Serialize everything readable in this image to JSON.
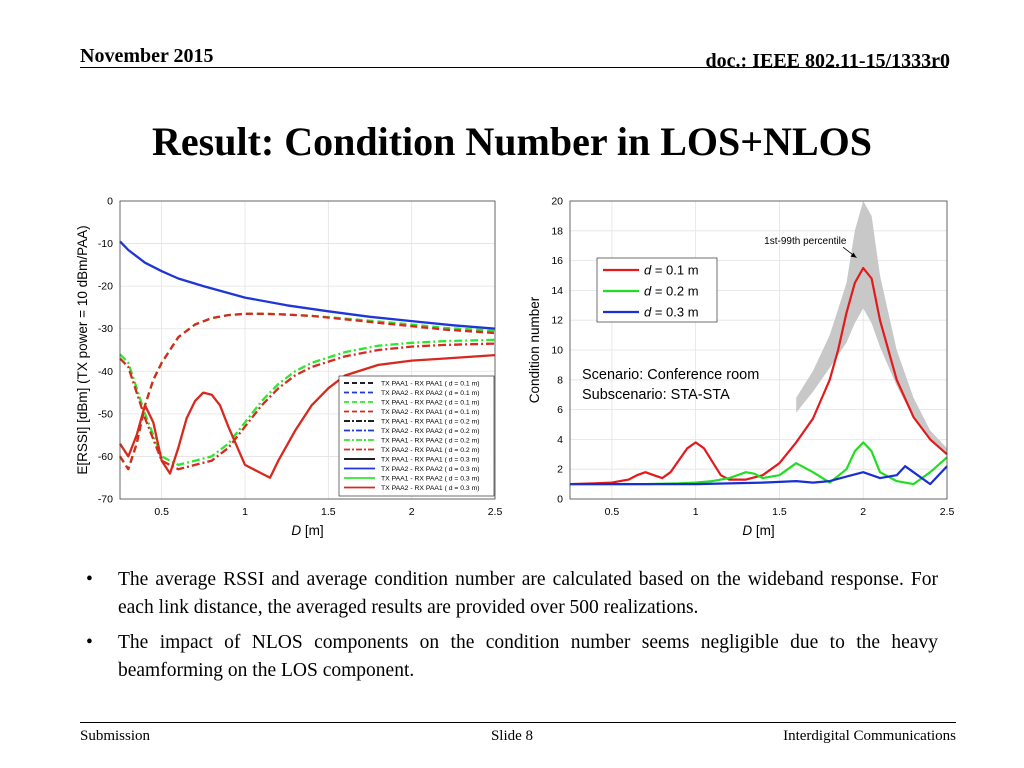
{
  "header": {
    "date": "November 2015",
    "doc": "doc.: IEEE 802.11-15/1333r0"
  },
  "slide_title": "Result: Condition Number in LOS+NLOS",
  "chart_data": [
    {
      "type": "line",
      "title": "",
      "xlabel_italic": "D",
      "xlabel_unit": " [m]",
      "ylabel": "E[RSSI] [dBm] (TX power = 10 dBm/PAA)",
      "xlim": [
        0.25,
        2.5
      ],
      "ylim": [
        -70,
        0
      ],
      "xticks": [
        0.5,
        1,
        1.5,
        2,
        2.5
      ],
      "xtick_labels": [
        "0.5",
        "1",
        "1.5",
        "2",
        "2.5"
      ],
      "yticks": [
        0,
        -10,
        -20,
        -30,
        -40,
        -50,
        -60,
        -70
      ],
      "ytick_labels": [
        "0",
        "-10",
        "-20",
        "-30",
        "-40",
        "-50",
        "-60",
        "-70"
      ],
      "legend_position": "bottom-right",
      "series": [
        {
          "name": "TX PAA2 - RX PAA2 (d = 0.3 m)",
          "color": "#1f36d6",
          "dash": "solid",
          "x": [
            0.25,
            0.3,
            0.4,
            0.5,
            0.6,
            0.75,
            1.0,
            1.25,
            1.5,
            1.75,
            2.0,
            2.25,
            2.5
          ],
          "y": [
            -9.5,
            -11.5,
            -14.5,
            -16.5,
            -18.2,
            -20.0,
            -22.7,
            -24.5,
            -25.9,
            -27.2,
            -28.2,
            -29.2,
            -30.0
          ]
        },
        {
          "name": "TX PAA1 - RX PAA2 (d = 0.2 m)",
          "color": "#2ee62e",
          "dash": "dashed",
          "x": [
            0.25,
            0.3,
            0.35,
            0.4,
            0.45,
            0.5,
            0.6,
            0.7,
            0.8,
            0.9,
            1.0,
            1.1,
            1.2,
            1.4,
            1.6,
            1.8,
            2.0,
            2.2,
            2.5
          ],
          "y": [
            -60,
            -63,
            -57,
            -48,
            -42,
            -38,
            -32,
            -29,
            -27.5,
            -26.8,
            -26.5,
            -26.5,
            -26.6,
            -27.0,
            -27.6,
            -28.3,
            -29.0,
            -29.8,
            -30.5
          ]
        },
        {
          "name": "TX PAA1 - RX PAA1 (d = 0.2 m)",
          "color": "#d62a1f",
          "dash": "dashed",
          "x": [
            0.25,
            0.3,
            0.35,
            0.4,
            0.45,
            0.5,
            0.6,
            0.7,
            0.8,
            0.9,
            1.0,
            1.1,
            1.2,
            1.4,
            1.6,
            1.8,
            2.0,
            2.2,
            2.5
          ],
          "y": [
            -60,
            -63,
            -57,
            -48,
            -42,
            -38,
            -32,
            -29,
            -27.5,
            -26.8,
            -26.5,
            -26.5,
            -26.6,
            -27.0,
            -27.8,
            -28.6,
            -29.4,
            -30.2,
            -31.0
          ]
        },
        {
          "name": "TX PAA1 - RX PAA2 (d = 0.1 m)",
          "color": "#2ee62e",
          "dash": "dashdot",
          "x": [
            0.25,
            0.3,
            0.35,
            0.4,
            0.5,
            0.6,
            0.7,
            0.8,
            0.9,
            1.0,
            1.1,
            1.2,
            1.3,
            1.4,
            1.6,
            1.8,
            2.0,
            2.2,
            2.5
          ],
          "y": [
            -36,
            -38,
            -44,
            -50,
            -60,
            -62,
            -61,
            -60,
            -57,
            -52,
            -47,
            -43,
            -40,
            -38,
            -35.5,
            -34,
            -33.3,
            -32.9,
            -32.6
          ]
        },
        {
          "name": "TX PAA1 - RX PAA1 (d = 0.1 m)",
          "color": "#d62a1f",
          "dash": "dashdot",
          "x": [
            0.25,
            0.3,
            0.35,
            0.4,
            0.5,
            0.6,
            0.7,
            0.8,
            0.9,
            1.0,
            1.1,
            1.2,
            1.3,
            1.4,
            1.6,
            1.8,
            2.0,
            2.2,
            2.5
          ],
          "y": [
            -37,
            -39,
            -45,
            -51,
            -61,
            -63,
            -62,
            -61,
            -58,
            -53,
            -48,
            -44,
            -41,
            -39,
            -36.5,
            -35,
            -34.2,
            -33.8,
            -33.5
          ]
        },
        {
          "name": "TX PAA1 - RX PAA1 (d = 0.3 m)",
          "color": "#d62a1f",
          "dash": "solid",
          "x": [
            0.25,
            0.3,
            0.35,
            0.4,
            0.45,
            0.5,
            0.55,
            0.6,
            0.65,
            0.7,
            0.75,
            0.8,
            0.85,
            0.9,
            1.0,
            1.1,
            1.15,
            1.2,
            1.3,
            1.4,
            1.5,
            1.6,
            1.8,
            2.0,
            2.2,
            2.5
          ],
          "y": [
            -57,
            -60,
            -55,
            -48,
            -52,
            -61,
            -64,
            -58,
            -51,
            -47,
            -45,
            -45.5,
            -48,
            -53,
            -62,
            -64,
            -65,
            -61,
            -54,
            -48,
            -44,
            -41,
            -38.5,
            -37.5,
            -37,
            -36.2
          ]
        }
      ]
    },
    {
      "type": "line",
      "title": "",
      "xlabel_italic": "D",
      "xlabel_unit": " [m]",
      "ylabel": "Condition number",
      "xlim": [
        0.25,
        2.5
      ],
      "ylim": [
        0,
        20
      ],
      "xticks": [
        0.5,
        1,
        1.5,
        2,
        2.5
      ],
      "xtick_labels": [
        "0.5",
        "1",
        "1.5",
        "2",
        "2.5"
      ],
      "yticks": [
        0,
        2,
        4,
        6,
        8,
        10,
        12,
        14,
        16,
        18,
        20
      ],
      "ytick_labels": [
        "0",
        "2",
        "4",
        "6",
        "8",
        "10",
        "12",
        "14",
        "16",
        "18",
        "20"
      ],
      "annotation": "1st-99th percentile",
      "legend": [
        {
          "prefix": "d",
          "label": " = 0.1 m",
          "color": "#e31a1c"
        },
        {
          "prefix": "d",
          "label": " = 0.2 m",
          "color": "#22dd22"
        },
        {
          "prefix": "d",
          "label": " = 0.3 m",
          "color": "#1a2fd1"
        }
      ],
      "band": {
        "x": [
          1.6,
          1.7,
          1.8,
          1.9,
          1.95,
          2.0,
          2.05,
          2.1,
          2.2,
          2.3,
          2.4,
          2.5
        ],
        "lower": [
          5.8,
          7.2,
          8.8,
          10.5,
          11.8,
          12.8,
          11.8,
          10.2,
          7.6,
          5.4,
          4.0,
          3.0
        ],
        "upper": [
          6.8,
          8.6,
          11.0,
          14.5,
          18.0,
          20.0,
          19.0,
          15.0,
          10.0,
          6.8,
          4.6,
          3.4
        ]
      },
      "series": [
        {
          "name": "d = 0.1 m",
          "color": "#e31a1c",
          "x": [
            0.25,
            0.4,
            0.5,
            0.6,
            0.65,
            0.7,
            0.75,
            0.8,
            0.85,
            0.9,
            0.95,
            1.0,
            1.05,
            1.1,
            1.15,
            1.2,
            1.3,
            1.4,
            1.5,
            1.6,
            1.7,
            1.8,
            1.85,
            1.9,
            1.95,
            2.0,
            2.05,
            2.1,
            2.2,
            2.3,
            2.4,
            2.5
          ],
          "y": [
            1.0,
            1.05,
            1.1,
            1.3,
            1.6,
            1.8,
            1.6,
            1.4,
            1.8,
            2.6,
            3.4,
            3.8,
            3.4,
            2.5,
            1.6,
            1.3,
            1.3,
            1.6,
            2.4,
            3.8,
            5.4,
            8.0,
            10.0,
            12.5,
            14.5,
            15.5,
            14.8,
            12.0,
            8.0,
            5.5,
            4.0,
            3.0
          ]
        },
        {
          "name": "d = 0.2 m",
          "color": "#22dd22",
          "x": [
            0.25,
            0.5,
            0.7,
            0.9,
            1.0,
            1.1,
            1.2,
            1.3,
            1.35,
            1.4,
            1.5,
            1.6,
            1.7,
            1.8,
            1.9,
            1.95,
            2.0,
            2.05,
            2.1,
            2.2,
            2.3,
            2.4,
            2.5
          ],
          "y": [
            1.0,
            1.0,
            1.0,
            1.05,
            1.1,
            1.2,
            1.4,
            1.8,
            1.7,
            1.4,
            1.6,
            2.4,
            1.8,
            1.1,
            2.0,
            3.2,
            3.8,
            3.2,
            1.8,
            1.2,
            1.0,
            1.8,
            2.8
          ]
        },
        {
          "name": "d = 0.3 m",
          "color": "#1a2fd1",
          "x": [
            0.25,
            0.5,
            0.7,
            0.9,
            1.0,
            1.2,
            1.4,
            1.6,
            1.7,
            1.8,
            1.9,
            2.0,
            2.1,
            2.2,
            2.25,
            2.3,
            2.4,
            2.5
          ],
          "y": [
            1.0,
            1.0,
            1.0,
            1.0,
            1.0,
            1.05,
            1.1,
            1.2,
            1.1,
            1.2,
            1.5,
            1.8,
            1.4,
            1.6,
            2.2,
            1.8,
            1.0,
            2.2
          ]
        }
      ]
    }
  ],
  "left_legend_entries": [
    {
      "label": "TX PAA1 - RX PAA1 ( d = 0.1 m)",
      "color": "#000000",
      "dash": "dashed"
    },
    {
      "label": "TX PAA2 - RX PAA2 ( d = 0.1 m)",
      "color": "#1f36d6",
      "dash": "dashed"
    },
    {
      "label": "TX PAA1 - RX PAA2 ( d = 0.1 m)",
      "color": "#2ee62e",
      "dash": "dashed"
    },
    {
      "label": "TX PAA2 - RX PAA1 ( d = 0.1 m)",
      "color": "#d62a1f",
      "dash": "dashed"
    },
    {
      "label": "TX PAA1 - RX PAA1 ( d = 0.2 m)",
      "color": "#000000",
      "dash": "dashdot"
    },
    {
      "label": "TX PAA2 - RX PAA2 ( d = 0.2 m)",
      "color": "#1f36d6",
      "dash": "dashdot"
    },
    {
      "label": "TX PAA1 - RX PAA2 ( d = 0.2 m)",
      "color": "#2ee62e",
      "dash": "dashdot"
    },
    {
      "label": "TX PAA2 - RX PAA1 ( d = 0.2 m)",
      "color": "#d62a1f",
      "dash": "dashdot"
    },
    {
      "label": "TX PAA1 - RX PAA1 ( d = 0.3 m)",
      "color": "#000000",
      "dash": "solid"
    },
    {
      "label": "TX PAA2 - RX PAA2 ( d = 0.3 m)",
      "color": "#1f36d6",
      "dash": "solid"
    },
    {
      "label": "TX PAA1 - RX PAA2 ( d = 0.3 m)",
      "color": "#2ee62e",
      "dash": "solid"
    },
    {
      "label": "TX PAA2 - RX PAA1 ( d = 0.3 m)",
      "color": "#d62a1f",
      "dash": "solid"
    }
  ],
  "scenario": {
    "line1": "Scenario: Conference room",
    "line2": "Subscenario: STA-STA"
  },
  "bullets": [
    {
      "marker": "•",
      "text": "The average RSSI and average condition number are calculated based on the wideband response. For each link distance, the averaged results are provided over 500 realizations."
    },
    {
      "marker": "•",
      "text": "The impact of NLOS components on the condition number seems negligible due to the heavy beamforming on the LOS component."
    }
  ],
  "footer": {
    "left": "Submission",
    "center": "Slide 8",
    "right": "Interdigital Communications"
  }
}
